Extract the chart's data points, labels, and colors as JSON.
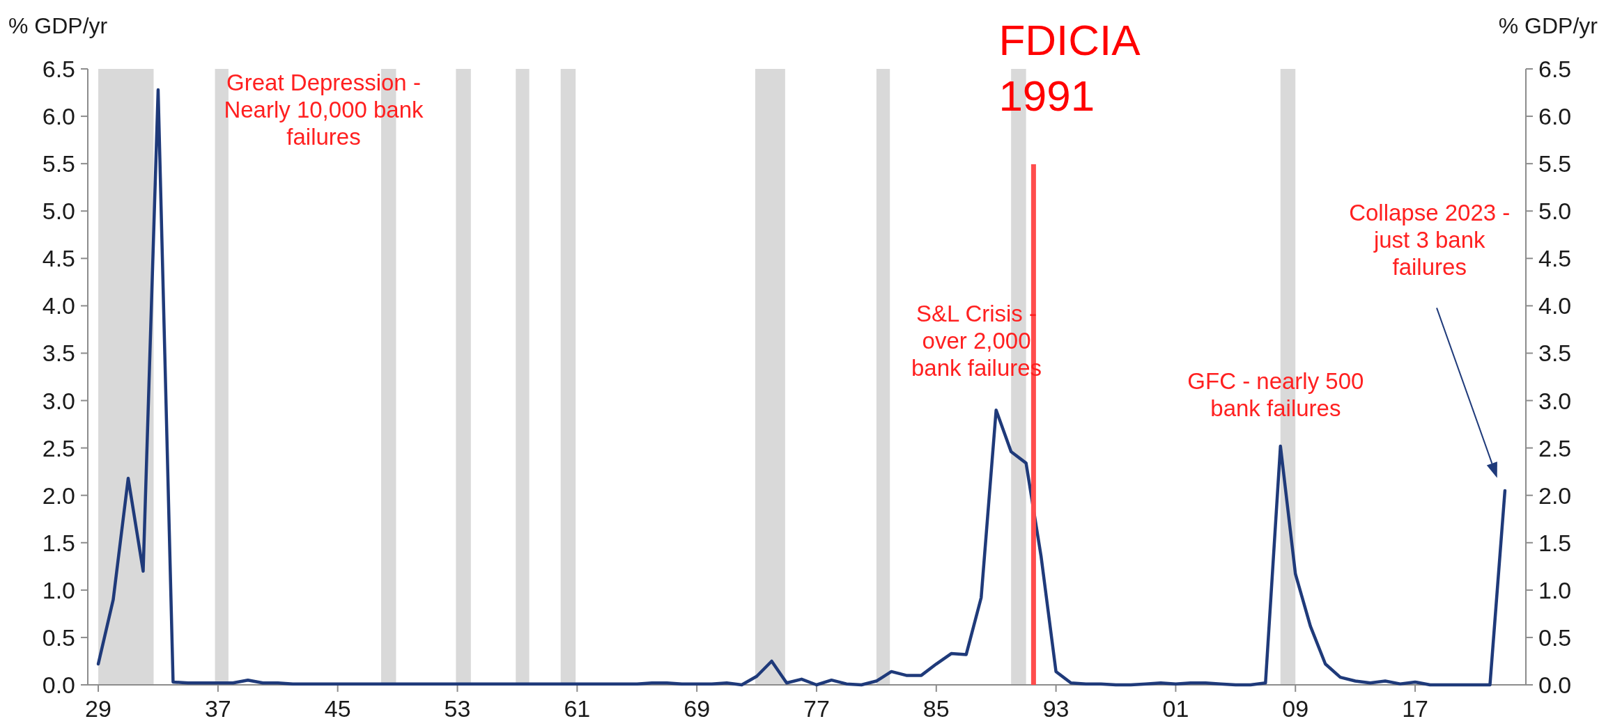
{
  "chart_data": {
    "type": "line",
    "ylabel": "% GDP/yr",
    "y2label": "% GDP/yr",
    "x": [
      1929,
      1930,
      1931,
      1932,
      1933,
      1934,
      1935,
      1936,
      1937,
      1938,
      1939,
      1940,
      1941,
      1942,
      1943,
      1944,
      1945,
      1946,
      1947,
      1948,
      1949,
      1950,
      1951,
      1952,
      1953,
      1954,
      1955,
      1956,
      1957,
      1958,
      1959,
      1960,
      1961,
      1962,
      1963,
      1964,
      1965,
      1966,
      1967,
      1968,
      1969,
      1970,
      1971,
      1972,
      1973,
      1974,
      1975,
      1976,
      1977,
      1978,
      1979,
      1980,
      1981,
      1982,
      1983,
      1984,
      1985,
      1986,
      1987,
      1988,
      1989,
      1990,
      1991,
      1992,
      1993,
      1994,
      1995,
      1996,
      1997,
      1998,
      1999,
      2000,
      2001,
      2002,
      2003,
      2004,
      2005,
      2006,
      2007,
      2008,
      2009,
      2010,
      2011,
      2012,
      2013,
      2014,
      2015,
      2016,
      2017,
      2018,
      2019,
      2020,
      2021,
      2022,
      2023
    ],
    "series": [
      {
        "color": "#1f3a7a",
        "values": [
          0.22,
          0.9,
          2.18,
          1.2,
          6.28,
          0.03,
          0.02,
          0.02,
          0.02,
          0.02,
          0.05,
          0.02,
          0.02,
          0.01,
          0.01,
          0.01,
          0.01,
          0.01,
          0.01,
          0.01,
          0.01,
          0.01,
          0.01,
          0.01,
          0.01,
          0.01,
          0.01,
          0.01,
          0.01,
          0.01,
          0.01,
          0.01,
          0.01,
          0.01,
          0.01,
          0.01,
          0.01,
          0.02,
          0.02,
          0.01,
          0.01,
          0.01,
          0.02,
          0.0,
          0.09,
          0.25,
          0.02,
          0.06,
          0.0,
          0.05,
          0.01,
          0.0,
          0.04,
          0.14,
          0.1,
          0.1,
          0.22,
          0.33,
          0.32,
          0.92,
          2.9,
          2.46,
          2.34,
          1.36,
          0.14,
          0.02,
          0.01,
          0.01,
          0.0,
          0.0,
          0.01,
          0.02,
          0.01,
          0.02,
          0.02,
          0.01,
          0.0,
          0.0,
          0.02,
          2.52,
          1.17,
          0.62,
          0.22,
          0.08,
          0.04,
          0.02,
          0.04,
          0.01,
          0.03,
          0.0,
          0.0,
          0.0,
          0.0,
          0.0,
          2.05
        ]
      }
    ],
    "xlim": [
      1928.3,
      2024.4
    ],
    "xticks": [
      {
        "value": 1929,
        "label": "29"
      },
      {
        "value": 1937,
        "label": "37"
      },
      {
        "value": 1945,
        "label": "45"
      },
      {
        "value": 1953,
        "label": "53"
      },
      {
        "value": 1961,
        "label": "61"
      },
      {
        "value": 1969,
        "label": "69"
      },
      {
        "value": 1977,
        "label": "77"
      },
      {
        "value": 1985,
        "label": "85"
      },
      {
        "value": 1993,
        "label": "93"
      },
      {
        "value": 2001,
        "label": "01"
      },
      {
        "value": 2009,
        "label": "09"
      },
      {
        "value": 2017,
        "label": "17"
      }
    ],
    "ylim": [
      0,
      6.5
    ],
    "yticks": [
      {
        "value": 0,
        "label": "0.0"
      },
      {
        "value": 0.5,
        "label": "0.5"
      },
      {
        "value": 1,
        "label": "1.0"
      },
      {
        "value": 1.5,
        "label": "1.5"
      },
      {
        "value": 2,
        "label": "2.0"
      },
      {
        "value": 2.5,
        "label": "2.5"
      },
      {
        "value": 3,
        "label": "3.0"
      },
      {
        "value": 3.5,
        "label": "3.5"
      },
      {
        "value": 4,
        "label": "4.0"
      },
      {
        "value": 4.5,
        "label": "4.5"
      },
      {
        "value": 5,
        "label": "5.0"
      },
      {
        "value": 5.5,
        "label": "5.5"
      },
      {
        "value": 6,
        "label": "6.0"
      },
      {
        "value": 6.5,
        "label": "6.5"
      }
    ],
    "y2lim": [
      0,
      6.5
    ],
    "y2ticks": [
      {
        "value": 0,
        "label": "0.0"
      },
      {
        "value": 0.5,
        "label": "0.5"
      },
      {
        "value": 1,
        "label": "1.0"
      },
      {
        "value": 1.5,
        "label": "1.5"
      },
      {
        "value": 2,
        "label": "2.0"
      },
      {
        "value": 2.5,
        "label": "2.5"
      },
      {
        "value": 3,
        "label": "3.0"
      },
      {
        "value": 3.5,
        "label": "3.5"
      },
      {
        "value": 4,
        "label": "4.0"
      },
      {
        "value": 4.5,
        "label": "4.5"
      },
      {
        "value": 5,
        "label": "5.0"
      },
      {
        "value": 5.5,
        "label": "5.5"
      },
      {
        "value": 6,
        "label": "6.0"
      },
      {
        "value": 6.5,
        "label": "6.5"
      }
    ],
    "bands": [
      {
        "axis": "x",
        "from": 1929,
        "to": 1932.7,
        "color": "#d9d9d9"
      },
      {
        "axis": "x",
        "from": 1936.8,
        "to": 1937.7,
        "color": "#d9d9d9"
      },
      {
        "axis": "x",
        "from": 1947.9,
        "to": 1948.9,
        "color": "#d9d9d9"
      },
      {
        "axis": "x",
        "from": 1952.9,
        "to": 1953.9,
        "color": "#d9d9d9"
      },
      {
        "axis": "x",
        "from": 1956.9,
        "to": 1957.8,
        "color": "#d9d9d9"
      },
      {
        "axis": "x",
        "from": 1959.9,
        "to": 1960.9,
        "color": "#d9d9d9"
      },
      {
        "axis": "x",
        "from": 1972.9,
        "to": 1974.9,
        "color": "#d9d9d9"
      },
      {
        "axis": "x",
        "from": 1981,
        "to": 1981.9,
        "color": "#d9d9d9"
      },
      {
        "axis": "x",
        "from": 1990,
        "to": 1991,
        "color": "#d9d9d9"
      },
      {
        "axis": "x",
        "from": 2008,
        "to": 2009,
        "color": "#d9d9d9"
      }
    ],
    "ref_lines": [
      {
        "axis": "x",
        "value": 1991.5,
        "label": "FDICIA 1991",
        "color": "#ff4d4d"
      }
    ],
    "annotations": [
      "Great Depression - Nearly 10,000 bank failures",
      "S&L Crisis - over 2,000 bank failures",
      "GFC - nearly 500 bank failures",
      "Collapse 2023 - just 3 bank failures"
    ],
    "grid": false
  }
}
